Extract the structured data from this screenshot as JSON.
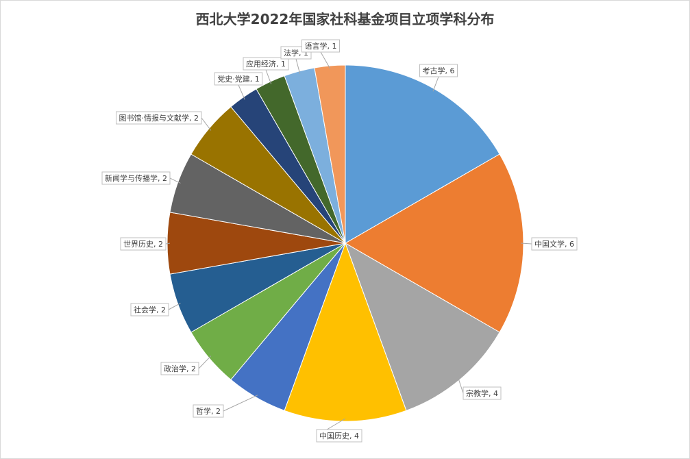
{
  "chart_data": {
    "type": "pie",
    "title": "西北大学2022年国家社科基金项目立项学科分布",
    "categories": [
      "考古学",
      "中国文学",
      "宗教学",
      "中国历史",
      "哲学",
      "政治学",
      "社会学",
      "世界历史",
      "新闻学与传播学",
      "图书馆·情报与文献学",
      "党史·党建",
      "应用经济",
      "法学",
      "语言学"
    ],
    "values": [
      6,
      6,
      4,
      4,
      2,
      2,
      2,
      2,
      2,
      2,
      1,
      1,
      1,
      1
    ],
    "data_labels": [
      "考古学, 6",
      "中国文学, 6",
      "宗教学, 4",
      "中国历史, 4",
      "哲学, 2",
      "政治学, 2",
      "社会学, 2",
      "世界历史, 2",
      "新闻学与传播学, 2",
      "图书馆·情报与文献学, 2",
      "党史·党建, 1",
      "应用经济, 1",
      "法学, 1",
      "语言学, 1"
    ],
    "colors": [
      "#5B9BD5",
      "#ED7D31",
      "#A5A5A5",
      "#FFC000",
      "#4472C4",
      "#70AD47",
      "#255E91",
      "#9E480E",
      "#636363",
      "#997300",
      "#264478",
      "#43682B",
      "#7CAFDD",
      "#F1975A"
    ],
    "start_angle_deg": 0,
    "direction": "clockwise"
  }
}
